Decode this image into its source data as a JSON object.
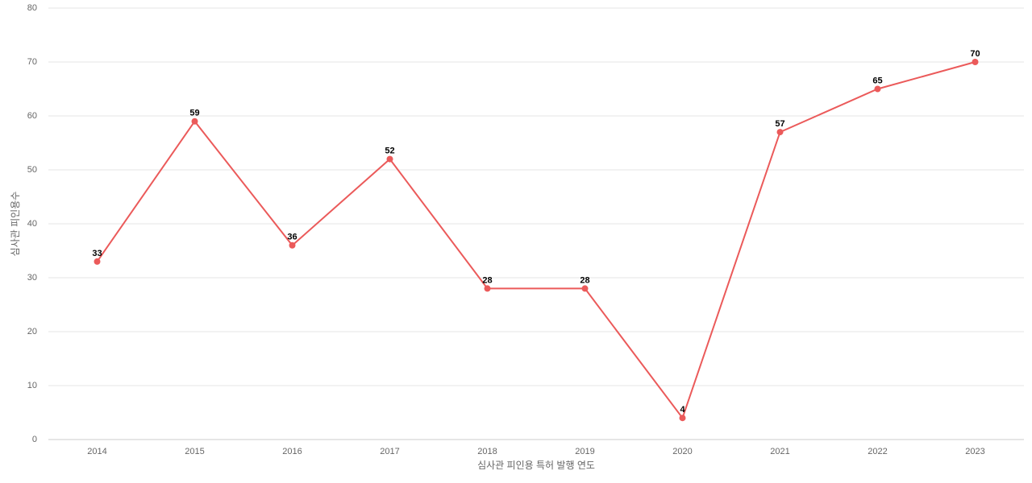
{
  "chart_data": {
    "type": "line",
    "x_label": "심사관 피인용 특허 발행 연도",
    "y_label": "심사관 피인용수",
    "categories": [
      "2014",
      "2015",
      "2016",
      "2017",
      "2018",
      "2019",
      "2020",
      "2021",
      "2022",
      "2023"
    ],
    "values": [
      33,
      59,
      36,
      52,
      28,
      28,
      4,
      57,
      65,
      70
    ],
    "color": "#eb5a5a",
    "ylim": [
      0,
      80
    ],
    "yticks": [
      0,
      10,
      20,
      30,
      40,
      50,
      60,
      70,
      80
    ],
    "grid": true
  }
}
